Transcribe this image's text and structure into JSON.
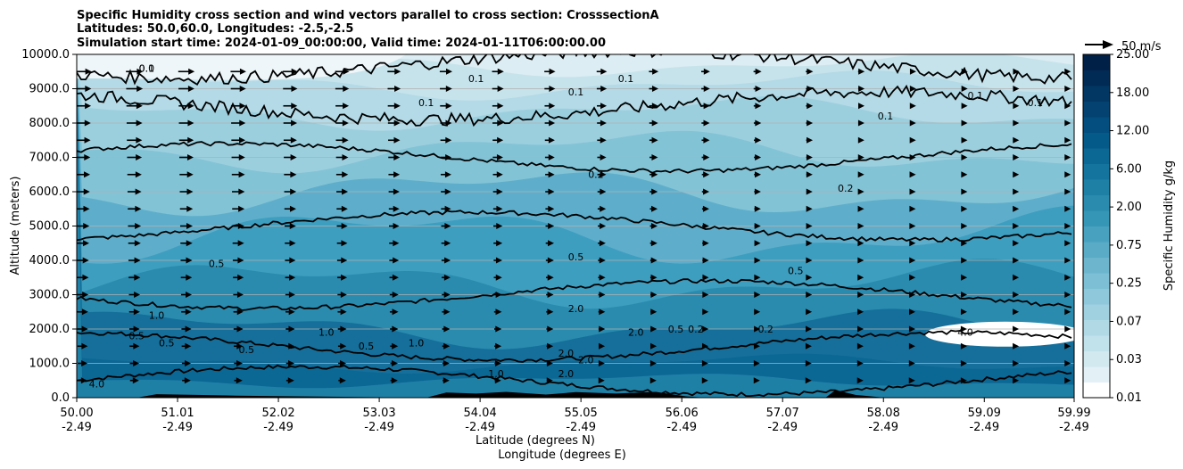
{
  "chart_data": {
    "type": "heatmap",
    "title_lines": [
      "Specific Humidity cross section and wind vectors parallel to cross section: CrosssectionA",
      "Latitudes: 50.0,60.0, Longitudes: -2.5,-2.5",
      "Simulation start time: 2024-01-09_00:00:00, Valid time: 2024-01-11T06:00:00.00"
    ],
    "ylabel": "Altitude (meters)",
    "xlabel_lines": [
      "Latitude (degrees N)",
      "Longitude (degrees E)"
    ],
    "ylim": [
      0,
      10000
    ],
    "y_ticks": [
      "0.0",
      "1000.0",
      "2000.0",
      "3000.0",
      "4000.0",
      "5000.0",
      "6000.0",
      "7000.0",
      "8000.0",
      "9000.0",
      "10000.0"
    ],
    "x_range": [
      50.0,
      59.99
    ],
    "x_ticks": [
      {
        "lat": "50.00",
        "lon": "-2.49",
        "value": 50.0
      },
      {
        "lat": "51.01",
        "lon": "-2.49",
        "value": 51.01
      },
      {
        "lat": "52.02",
        "lon": "-2.49",
        "value": 52.02
      },
      {
        "lat": "53.03",
        "lon": "-2.49",
        "value": 53.03
      },
      {
        "lat": "54.04",
        "lon": "-2.49",
        "value": 54.04
      },
      {
        "lat": "55.05",
        "lon": "-2.49",
        "value": 55.05
      },
      {
        "lat": "56.06",
        "lon": "-2.49",
        "value": 56.06
      },
      {
        "lat": "57.07",
        "lon": "-2.49",
        "value": 57.07
      },
      {
        "lat": "58.08",
        "lon": "-2.49",
        "value": 58.08
      },
      {
        "lat": "59.09",
        "lon": "-2.49",
        "value": 59.09
      },
      {
        "lat": "59.99",
        "lon": "-2.49",
        "value": 59.99
      }
    ],
    "grid": "horizontal",
    "colorbar": {
      "label": "Specific Humidity g/kg",
      "levels": [
        "0.01",
        "0.02",
        "0.03",
        "0.05",
        "0.07",
        "0.1",
        "0.15",
        "0.25",
        "0.35",
        "0.5",
        "0.75",
        "1.00",
        "1.5",
        "2.00",
        "3.5",
        "6.00",
        "9.0",
        "12.00",
        "15.0",
        "18.00",
        "21.0",
        "25.00"
      ],
      "tick_labels": [
        "0.01",
        "0.03",
        "0.07",
        "0.25",
        "0.75",
        "2.00",
        "6.00",
        "12.00",
        "18.00",
        "25.00"
      ],
      "colors": [
        "#ffffff",
        "#e3f0f5",
        "#d2e9f0",
        "#c1e1eb",
        "#b0d9e5",
        "#9fd1e0",
        "#8ec8da",
        "#7dbfd4",
        "#6cb5cd",
        "#5aabc6",
        "#48a1be",
        "#3696b6",
        "#2a8bae",
        "#1f80a6",
        "#15749d",
        "#0b6794",
        "#045a89",
        "#034e7e",
        "#034271",
        "#023763",
        "#012b55",
        "#012047"
      ]
    },
    "wind_reference": "50 m/s",
    "contour_labels": [
      "0.0",
      "0.1",
      "0.1",
      "0.1",
      "0.1",
      "0.1",
      "0.1",
      "0.1",
      "0.2",
      "0.2",
      "0.2",
      "0.5",
      "0.5",
      "0.5",
      "0.5",
      "0.5",
      "0.5",
      "0.5",
      "1.0",
      "1.0",
      "1.0",
      "1.0",
      "2.0",
      "2.0",
      "2.0",
      "2.0",
      "2.0",
      "4.0",
      "4.0",
      "0.5",
      "0.2",
      "0.1"
    ],
    "approx_humidity_profile": [
      {
        "altitude": 500,
        "value": 6.0
      },
      {
        "altitude": 1500,
        "value": 2.0
      },
      {
        "altitude": 3000,
        "value": 1.0
      },
      {
        "altitude": 5000,
        "value": 0.5
      },
      {
        "altitude": 7000,
        "value": 0.2
      },
      {
        "altitude": 8500,
        "value": 0.1
      },
      {
        "altitude": 9700,
        "value": 0.05
      }
    ]
  }
}
